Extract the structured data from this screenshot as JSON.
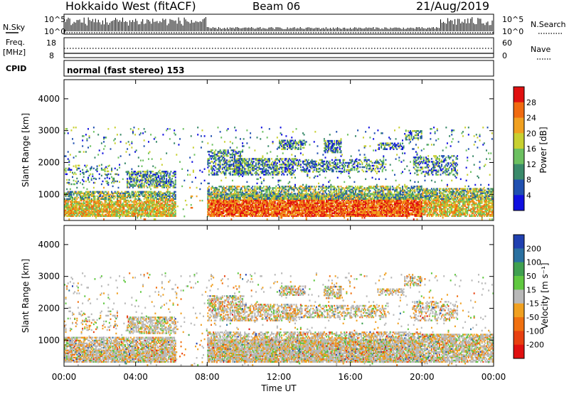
{
  "header": {
    "title": "Hokkaido West (fitACF)",
    "beam": "Beam 06",
    "date": "21/Aug/2019"
  },
  "noise_panel": {
    "left_label": "N.Sky",
    "right_label": "N.Search",
    "left_ticks": [
      "10^5",
      "10^0"
    ],
    "right_ticks": [
      "10^5",
      "10^0"
    ]
  },
  "freq_panel": {
    "label_line1": "Freq.",
    "label_line2": "[MHz]",
    "left_ticks": [
      "18",
      "8"
    ],
    "right_label": "Nave",
    "right_ticks": [
      "60",
      "0"
    ]
  },
  "cpid_panel": {
    "label": "CPID",
    "text": "normal (fast stereo) 153"
  },
  "axes": {
    "ylabel": "Slant Range [km]",
    "yticks": [
      "1000",
      "2000",
      "3000",
      "4000"
    ],
    "xticks": [
      "00:00",
      "04:00",
      "08:00",
      "12:00",
      "16:00",
      "20:00",
      "00:00"
    ],
    "xlabel": "Time UT"
  },
  "chart_data": [
    {
      "type": "heatmap",
      "title": "Power",
      "x_range_hours": [
        0,
        24
      ],
      "y_range_km": [
        180,
        4600
      ],
      "colorbar": {
        "label": "Power [dB]",
        "ticks": [
          "4",
          "8",
          "12",
          "16",
          "20",
          "24",
          "28"
        ],
        "colors": [
          "#1010e0",
          "#2050b0",
          "#3a8a6a",
          "#6cc060",
          "#c8d030",
          "#f0a020",
          "#f06a10",
          "#e01010"
        ]
      }
    },
    {
      "type": "heatmap",
      "title": "Velocity",
      "x_range_hours": [
        0,
        24
      ],
      "y_range_km": [
        180,
        4600
      ],
      "colorbar": {
        "label": "Velocity [m s⁻¹]",
        "ticks": [
          "200",
          "100",
          "50",
          "15",
          "-15",
          "-50",
          "-100",
          "-200"
        ],
        "colors": [
          "#2040b0",
          "#2a70a0",
          "#40a050",
          "#60c840",
          "#b8b8b8",
          "#f0a020",
          "#f07010",
          "#e84010",
          "#e01010"
        ]
      }
    }
  ]
}
